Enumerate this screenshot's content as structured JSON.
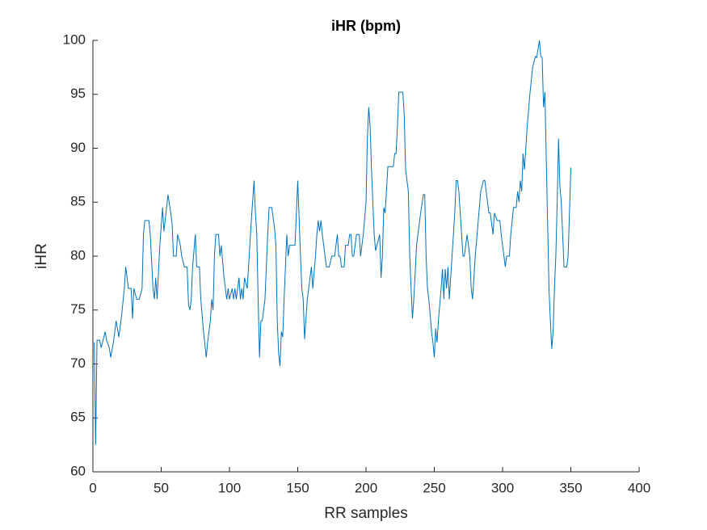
{
  "chart_data": {
    "type": "line",
    "title": "iHR (bpm)",
    "x_label": "RR samples",
    "y_label": "iHR",
    "x": [
      1,
      2,
      3,
      5,
      6,
      8,
      9,
      10,
      12,
      13,
      15,
      17,
      19,
      21,
      23,
      24,
      26,
      28,
      29,
      30,
      32,
      34,
      36,
      37,
      38,
      41,
      42,
      44,
      45,
      46,
      47,
      49,
      51,
      52,
      55,
      57,
      58,
      59,
      61,
      62,
      64,
      65,
      67,
      69,
      70,
      71,
      72,
      73,
      75,
      76,
      78,
      79,
      81,
      83,
      84,
      86,
      87,
      88,
      89,
      90,
      92,
      93,
      94,
      96,
      98,
      99,
      100,
      101,
      102,
      103,
      104,
      105,
      106,
      107,
      108,
      109,
      110,
      111,
      113,
      116,
      118,
      119,
      120,
      121,
      122,
      123,
      124,
      126,
      128,
      129,
      131,
      133,
      134,
      135,
      136,
      137,
      138,
      139,
      140,
      142,
      143,
      144,
      146,
      148,
      149,
      150,
      152,
      153,
      154,
      155,
      157,
      158,
      160,
      161,
      163,
      164,
      165,
      166,
      167,
      168,
      170,
      171,
      173,
      175,
      177,
      179,
      180,
      181,
      182,
      184,
      185,
      187,
      188,
      189,
      190,
      191,
      193,
      194,
      195,
      196,
      197,
      198,
      200,
      201,
      202,
      203,
      204,
      206,
      207,
      208,
      210,
      211,
      212,
      213,
      214,
      216,
      218,
      219,
      220,
      221,
      222,
      223,
      224,
      225,
      227,
      228,
      229,
      231,
      232,
      233,
      234,
      235,
      237,
      238,
      240,
      242,
      243,
      244,
      245,
      246,
      248,
      249,
      250,
      251,
      252,
      253,
      255,
      256,
      257,
      258,
      259,
      260,
      261,
      263,
      265,
      266,
      267,
      268,
      270,
      271,
      272,
      274,
      276,
      277,
      278,
      280,
      282,
      284,
      286,
      287,
      288,
      290,
      291,
      293,
      294,
      296,
      298,
      299,
      302,
      303,
      305,
      306,
      308,
      310,
      311,
      312,
      313,
      314,
      315,
      316,
      318,
      320,
      322,
      324,
      325,
      327,
      328,
      329,
      330,
      331,
      332,
      333,
      334,
      335,
      336,
      337,
      338,
      339,
      340,
      341,
      342,
      343,
      345,
      347,
      348,
      350
    ],
    "values": [
      72,
      62.5,
      72.2,
      72.2,
      71.5,
      72.5,
      73,
      72.2,
      71.5,
      70.6,
      72,
      74,
      72.5,
      74.5,
      77,
      79,
      77,
      77,
      74.2,
      77,
      76,
      76,
      77,
      82,
      83.3,
      83.3,
      82,
      77,
      76,
      78,
      76,
      81,
      84.5,
      82.3,
      85.7,
      84,
      83,
      80,
      80,
      82,
      81,
      80,
      79,
      79,
      75.5,
      75,
      76,
      79,
      82,
      79,
      79,
      76,
      73,
      70.6,
      72,
      74,
      76,
      75,
      80,
      82,
      82,
      80,
      81,
      78,
      76,
      77,
      76,
      76.5,
      77,
      76,
      77,
      76,
      77,
      78,
      76,
      77,
      76,
      78,
      77,
      83.3,
      87,
      84,
      82,
      76,
      70.6,
      74,
      74,
      76,
      82,
      84.5,
      84.5,
      82.6,
      81,
      74,
      71,
      69.8,
      73,
      72.5,
      76,
      82,
      80,
      81,
      81,
      81,
      84,
      87,
      80,
      77,
      76,
      72.3,
      76,
      77,
      79,
      77,
      80,
      82,
      83.3,
      82.3,
      83.3,
      82,
      80,
      79,
      79,
      80,
      80,
      82,
      80,
      80,
      79,
      79,
      81,
      81,
      82,
      82,
      80,
      80,
      82,
      82,
      82,
      80,
      81,
      82,
      85,
      91,
      93.8,
      92,
      88,
      82,
      80.5,
      81,
      82,
      78,
      80,
      84.5,
      84,
      88.3,
      88.3,
      88.3,
      88.3,
      89.5,
      89.5,
      92,
      95.2,
      95.2,
      95.2,
      93,
      88,
      86,
      80,
      77,
      74.2,
      76,
      81,
      82,
      84,
      85.7,
      85.7,
      80,
      77,
      76,
      73,
      72,
      70.6,
      73.3,
      72,
      74,
      77,
      78.8,
      76,
      78.8,
      77,
      79,
      76,
      80,
      84,
      87,
      87,
      86,
      82,
      80,
      80,
      82,
      80,
      77,
      76,
      80,
      83,
      86,
      87,
      87,
      86,
      84,
      84,
      82,
      84,
      83.3,
      83.3,
      82,
      79,
      80,
      80,
      82,
      84.5,
      84.5,
      86,
      85,
      87,
      86,
      89.5,
      88,
      92,
      95,
      97.5,
      98.5,
      98.4,
      100,
      98.5,
      98.4,
      93.8,
      95.2,
      89,
      83,
      77,
      74,
      71.4,
      73,
      77,
      80,
      85,
      90.9,
      86.5,
      85,
      79,
      79,
      80,
      88.2
    ],
    "color": "#0072bd",
    "xlim": [
      0,
      400
    ],
    "xticks": [
      0,
      50,
      100,
      150,
      200,
      250,
      300,
      350,
      400
    ],
    "ylim": [
      60,
      100
    ],
    "yticks": [
      60,
      65,
      70,
      75,
      80,
      85,
      90,
      95,
      100
    ]
  }
}
